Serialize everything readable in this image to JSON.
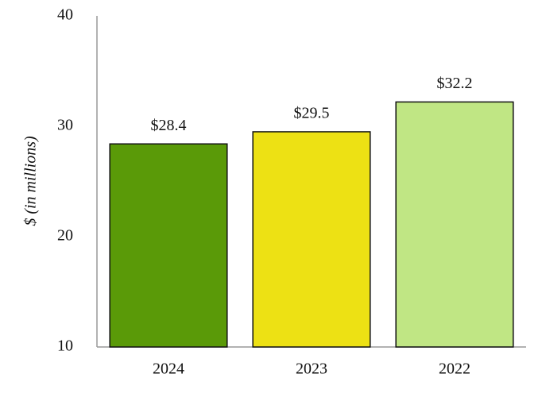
{
  "chart_data": {
    "type": "bar",
    "y_label": "$ (in millions)",
    "categories": [
      "2024",
      "2023",
      "2022"
    ],
    "values": [
      28.4,
      29.5,
      32.2
    ],
    "value_labels": [
      "$28.4",
      "$29.5",
      "$32.2"
    ],
    "colors": [
      "#5a9a08",
      "#ede114",
      "#c0e684"
    ],
    "ylim": [
      10,
      40
    ],
    "yticks": [
      10,
      20,
      30,
      40
    ]
  }
}
